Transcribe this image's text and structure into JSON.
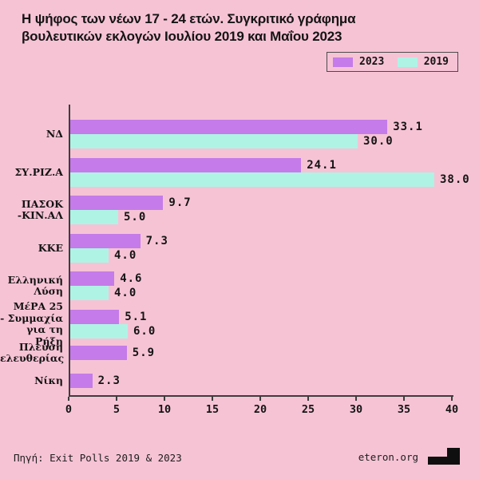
{
  "page": {
    "background": "#f6c3d5"
  },
  "title": {
    "line1": "Η ψήφος των νέων 17 - 24 ετών. Συγκριτικό γράφημα",
    "line2": "βουλευτικών εκλογών Ιουλίου 2019 και Μαΐου 2023"
  },
  "legend": {
    "items": [
      {
        "label": "2023",
        "color": "#c57be9"
      },
      {
        "label": "2019",
        "color": "#aff3e5"
      }
    ]
  },
  "chart_data": {
    "type": "bar",
    "orientation": "horizontal",
    "title": "Η ψήφος των νέων 17 - 24 ετών. Συγκριτικό γράφημα βουλευτικών εκλογών Ιουλίου 2019 και Μαΐου 2023",
    "categories": [
      "ΝΔ",
      "ΣΥ.ΡΙΖ.Α",
      "ΠΑΣΟΚ -ΚΙΝ.ΑΛ",
      "ΚΚΕ",
      "Ελληνική Λύση",
      "ΜέΡΑ 25 - Συμμαχία για τη Ρήξη",
      "Πλεύση ελευθερίας",
      "Νίκη"
    ],
    "category_label_lines": [
      [
        "ΝΔ"
      ],
      [
        "ΣΥ.ΡΙΖ.Α"
      ],
      [
        "ΠΑΣΟΚ",
        "-ΚΙΝ.ΑΛ"
      ],
      [
        "ΚΚΕ"
      ],
      [
        "Ελληνική",
        "Λύση"
      ],
      [
        "ΜέΡΑ 25",
        "- Συμμαχία",
        "για τη Ρήξη"
      ],
      [
        "Πλεύση",
        "ελευθερίας"
      ],
      [
        "Νίκη"
      ]
    ],
    "series": [
      {
        "name": "2023",
        "color": "#c57be9",
        "values": [
          33.1,
          24.1,
          9.7,
          7.3,
          4.6,
          5.1,
          5.9,
          2.3
        ]
      },
      {
        "name": "2019",
        "color": "#aff3e5",
        "values": [
          30.0,
          38.0,
          5.0,
          4.0,
          4.0,
          6.0,
          null,
          null
        ]
      }
    ],
    "xlim": [
      0,
      40
    ],
    "xticks": [
      0,
      5,
      10,
      15,
      20,
      25,
      30,
      35,
      40
    ],
    "value_label_decimals": 1,
    "legend_position": "top-right",
    "grid": false
  },
  "footer": {
    "source": "Πηγή: Exit Polls 2019 & 2023",
    "site": "eteron.org"
  }
}
